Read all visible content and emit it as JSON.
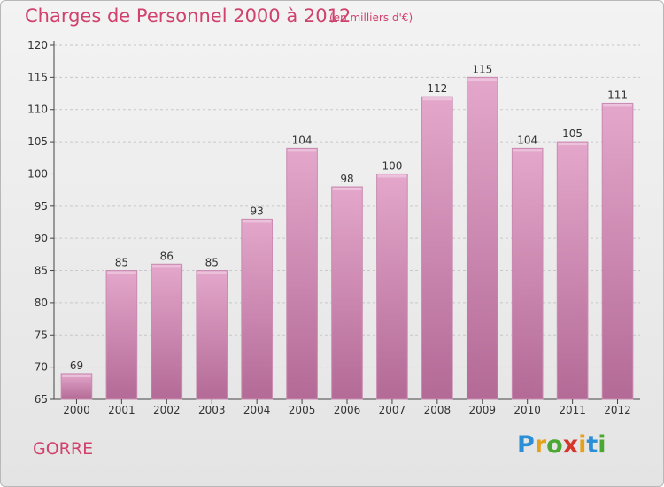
{
  "header": {
    "title": "Charges de Personnel 2000 à 2012",
    "subtitle": "(en milliers d'€)"
  },
  "footer": {
    "place": "GORRE",
    "logo_letters": [
      "P",
      "r",
      "o",
      "x",
      "i",
      "t",
      "i"
    ],
    "logo_colors": [
      "#2a8fd6",
      "#e3a21a",
      "#4aa832",
      "#d8352a",
      "#e3a21a",
      "#2a8fd6",
      "#4aa832"
    ]
  },
  "colors": {
    "bar_top": "#e4a7cb",
    "bar_bottom": "#b36a96",
    "bar_border": "#c98bb0",
    "axis": "#444444",
    "grid": "#c8c8c8",
    "text": "#333333"
  },
  "chart_data": {
    "type": "bar",
    "categories": [
      "2000",
      "2001",
      "2002",
      "2003",
      "2004",
      "2005",
      "2006",
      "2007",
      "2008",
      "2009",
      "2010",
      "2011",
      "2012"
    ],
    "values": [
      69,
      85,
      86,
      85,
      93,
      104,
      98,
      100,
      112,
      115,
      104,
      105,
      111
    ],
    "ylim": [
      65,
      120
    ],
    "yticks": [
      65,
      70,
      75,
      80,
      85,
      90,
      95,
      100,
      105,
      110,
      115,
      120
    ],
    "grid": true,
    "data_labels": true
  }
}
